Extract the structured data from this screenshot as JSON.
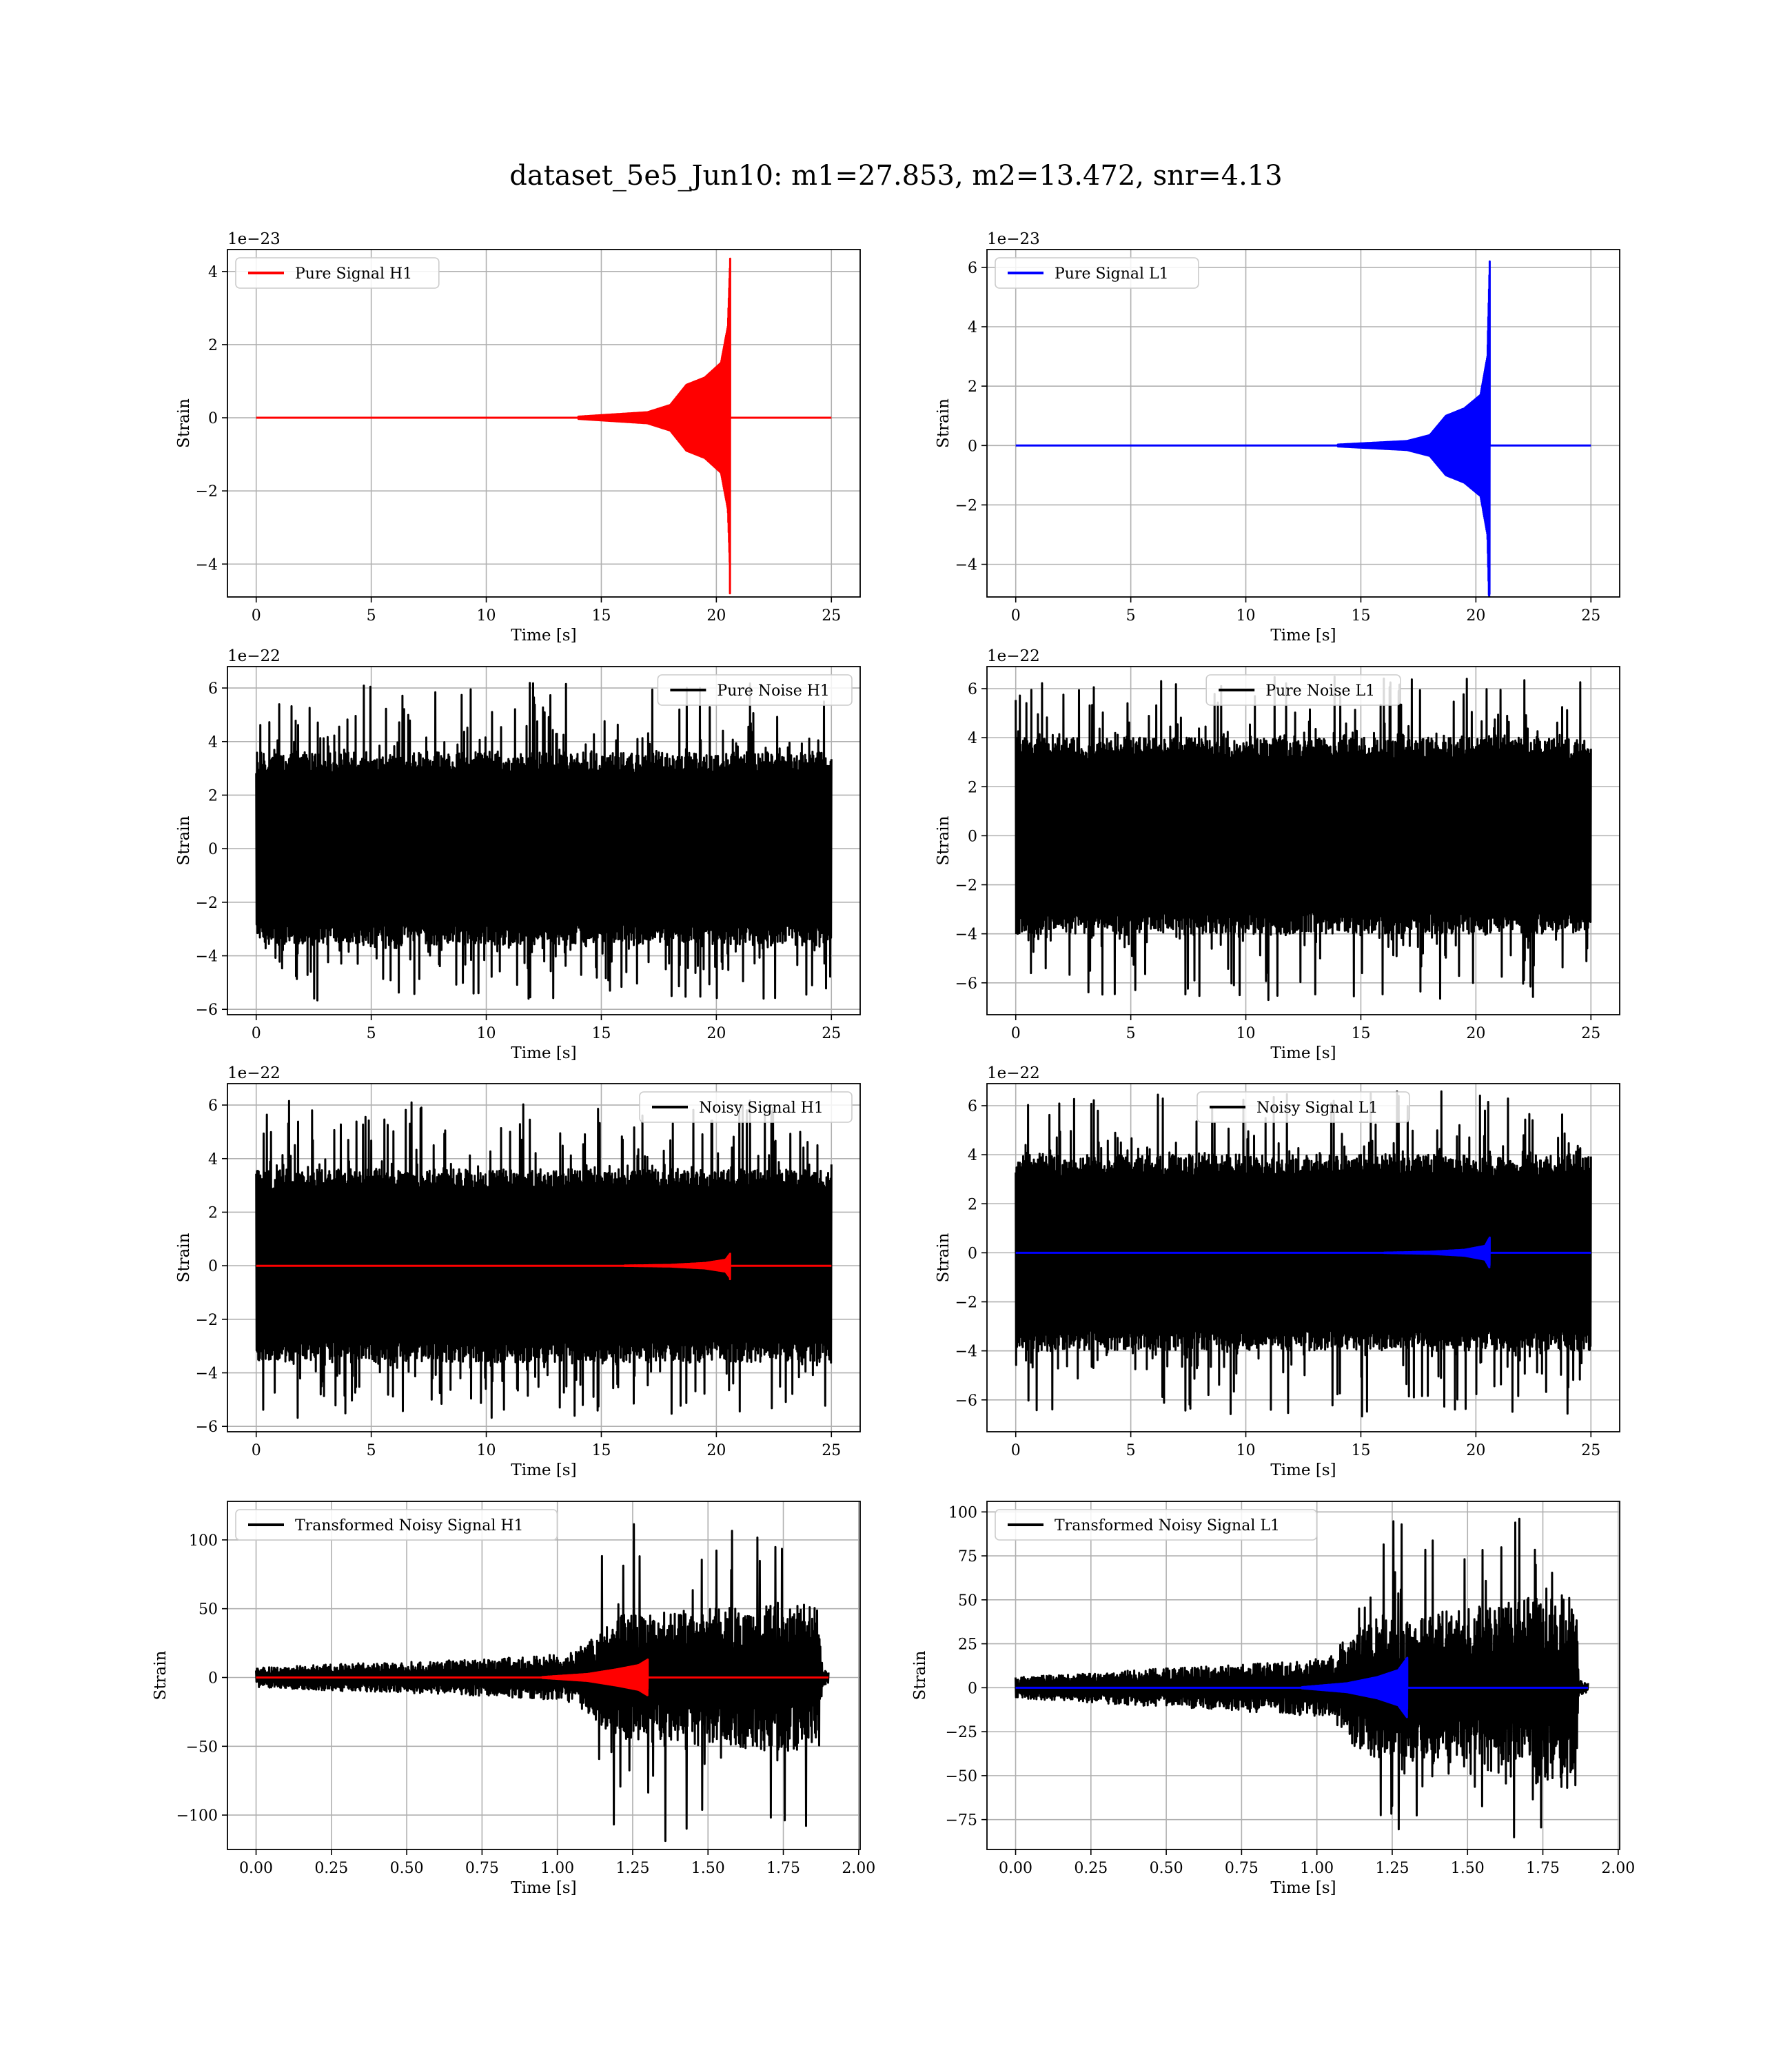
{
  "figure": {
    "suptitle": "dataset_5e5_Jun10: m1=27.853, m2=13.472, snr=4.13"
  },
  "chart_data": [
    {
      "type": "line",
      "id": "pure-signal-h1",
      "xlabel": "Time [s]",
      "ylabel": "Strain",
      "offset_text": "1e−23",
      "xlim": [
        -1.25,
        26.25
      ],
      "ylim": [
        -4.9,
        4.6
      ],
      "xticks": [
        0,
        5,
        10,
        15,
        20,
        25
      ],
      "xtick_labels": [
        "0",
        "5",
        "10",
        "15",
        "20",
        "25"
      ],
      "yticks": [
        -4,
        -2,
        0,
        2,
        4
      ],
      "ytick_labels": [
        "−4",
        "−2",
        "0",
        "2",
        "4"
      ],
      "grid": true,
      "legend_position": "upper left",
      "series": [
        {
          "name": "Pure Signal H1",
          "color": "#ff0000",
          "kind": "chirp",
          "x_range": [
            0,
            25
          ],
          "merger_x": 20.6,
          "onset_x": 14.0,
          "envelope_points": [
            [
              14,
              0.03
            ],
            [
              17,
              0.15
            ],
            [
              18,
              0.35
            ],
            [
              18.7,
              0.9
            ],
            [
              19.5,
              1.1
            ],
            [
              20.2,
              1.5
            ],
            [
              20.5,
              2.5
            ],
            [
              20.6,
              4.35
            ]
          ],
          "min_peak": -4.8
        }
      ]
    },
    {
      "type": "line",
      "id": "pure-signal-l1",
      "xlabel": "Time [s]",
      "ylabel": "Strain",
      "offset_text": "1e−23",
      "xlim": [
        -1.25,
        26.25
      ],
      "ylim": [
        -5.1,
        6.6
      ],
      "xticks": [
        0,
        5,
        10,
        15,
        20,
        25
      ],
      "xtick_labels": [
        "0",
        "5",
        "10",
        "15",
        "20",
        "25"
      ],
      "yticks": [
        -4,
        -2,
        0,
        2,
        4,
        6
      ],
      "ytick_labels": [
        "−4",
        "−2",
        "0",
        "2",
        "4",
        "6"
      ],
      "grid": true,
      "legend_position": "upper left",
      "series": [
        {
          "name": "Pure Signal L1",
          "color": "#0000ff",
          "kind": "chirp",
          "x_range": [
            0,
            25
          ],
          "merger_x": 20.6,
          "onset_x": 14.0,
          "envelope_points": [
            [
              14,
              0.03
            ],
            [
              17,
              0.15
            ],
            [
              18,
              0.35
            ],
            [
              18.7,
              1.0
            ],
            [
              19.5,
              1.25
            ],
            [
              20.2,
              1.7
            ],
            [
              20.5,
              3.0
            ],
            [
              20.6,
              6.2
            ]
          ],
          "min_peak": -5.0
        }
      ]
    },
    {
      "type": "line",
      "id": "pure-noise-h1",
      "xlabel": "Time [s]",
      "ylabel": "Strain",
      "offset_text": "1e−22",
      "xlim": [
        -1.25,
        26.25
      ],
      "ylim": [
        -6.2,
        6.8
      ],
      "xticks": [
        0,
        5,
        10,
        15,
        20,
        25
      ],
      "xtick_labels": [
        "0",
        "5",
        "10",
        "15",
        "20",
        "25"
      ],
      "yticks": [
        -6,
        -4,
        -2,
        0,
        2,
        4,
        6
      ],
      "ytick_labels": [
        "−6",
        "−4",
        "−2",
        "0",
        "2",
        "4",
        "6"
      ],
      "grid": true,
      "legend_position": "upper right",
      "series": [
        {
          "name": "Pure Noise H1",
          "color": "#000000",
          "kind": "noise",
          "x_range": [
            0,
            25
          ],
          "band": 3.6,
          "max_peak": 6.2,
          "min_peak": -5.7
        }
      ]
    },
    {
      "type": "line",
      "id": "pure-noise-l1",
      "xlabel": "Time [s]",
      "ylabel": "Strain",
      "offset_text": "1e−22",
      "xlim": [
        -1.25,
        26.25
      ],
      "ylim": [
        -7.3,
        6.9
      ],
      "xticks": [
        0,
        5,
        10,
        15,
        20,
        25
      ],
      "xtick_labels": [
        "0",
        "5",
        "10",
        "15",
        "20",
        "25"
      ],
      "yticks": [
        -6,
        -4,
        -2,
        0,
        2,
        4,
        6
      ],
      "ytick_labels": [
        "−6",
        "−4",
        "−2",
        "0",
        "2",
        "4",
        "6"
      ],
      "grid": true,
      "legend_position": "upper center",
      "series": [
        {
          "name": "Pure Noise L1",
          "color": "#000000",
          "kind": "noise",
          "x_range": [
            0,
            25
          ],
          "band": 4.0,
          "max_peak": 6.5,
          "min_peak": -6.7
        }
      ]
    },
    {
      "type": "line",
      "id": "noisy-signal-h1",
      "xlabel": "Time [s]",
      "ylabel": "Strain",
      "offset_text": "1e−22",
      "xlim": [
        -1.25,
        26.25
      ],
      "ylim": [
        -6.2,
        6.8
      ],
      "xticks": [
        0,
        5,
        10,
        15,
        20,
        25
      ],
      "xtick_labels": [
        "0",
        "5",
        "10",
        "15",
        "20",
        "25"
      ],
      "yticks": [
        -6,
        -4,
        -2,
        0,
        2,
        4,
        6
      ],
      "ytick_labels": [
        "−6",
        "−4",
        "−2",
        "0",
        "2",
        "4",
        "6"
      ],
      "grid": true,
      "legend_position": "upper right",
      "series": [
        {
          "name": "Noisy Signal H1",
          "color": "#000000",
          "kind": "noise",
          "x_range": [
            0,
            25
          ],
          "band": 3.6,
          "max_peak": 6.2,
          "min_peak": -5.7
        },
        {
          "name": "",
          "color": "#ff0000",
          "kind": "chirp",
          "x_range": [
            0,
            25
          ],
          "merger_x": 20.6,
          "onset_x": 16.0,
          "envelope_points": [
            [
              16,
              0.005
            ],
            [
              18,
              0.03
            ],
            [
              19.5,
              0.1
            ],
            [
              20.4,
              0.22
            ],
            [
              20.6,
              0.45
            ]
          ],
          "min_peak": -0.5
        }
      ]
    },
    {
      "type": "line",
      "id": "noisy-signal-l1",
      "xlabel": "Time [s]",
      "ylabel": "Strain",
      "offset_text": "1e−22",
      "xlim": [
        -1.25,
        26.25
      ],
      "ylim": [
        -7.3,
        6.9
      ],
      "xticks": [
        0,
        5,
        10,
        15,
        20,
        25
      ],
      "xtick_labels": [
        "0",
        "5",
        "10",
        "15",
        "20",
        "25"
      ],
      "yticks": [
        -6,
        -4,
        -2,
        0,
        2,
        4,
        6
      ],
      "ytick_labels": [
        "−6",
        "−4",
        "−2",
        "0",
        "2",
        "4",
        "6"
      ],
      "grid": true,
      "legend_position": "upper center",
      "series": [
        {
          "name": "Noisy Signal L1",
          "color": "#000000",
          "kind": "noise",
          "x_range": [
            0,
            25
          ],
          "band": 4.0,
          "max_peak": 6.6,
          "min_peak": -6.7
        },
        {
          "name": "",
          "color": "#0000ff",
          "kind": "chirp",
          "x_range": [
            0,
            25
          ],
          "merger_x": 20.6,
          "onset_x": 16.0,
          "envelope_points": [
            [
              16,
              0.005
            ],
            [
              18,
              0.04
            ],
            [
              19.5,
              0.12
            ],
            [
              20.4,
              0.28
            ],
            [
              20.6,
              0.62
            ]
          ],
          "min_peak": -0.5
        }
      ]
    },
    {
      "type": "line",
      "id": "transformed-noisy-signal-h1",
      "xlabel": "Time [s]",
      "ylabel": "Strain",
      "offset_text": "",
      "xlim": [
        -0.095,
        2.005
      ],
      "ylim": [
        -125,
        128
      ],
      "xticks": [
        0.0,
        0.25,
        0.5,
        0.75,
        1.0,
        1.25,
        1.5,
        1.75,
        2.0
      ],
      "xtick_labels": [
        "0.00",
        "0.25",
        "0.50",
        "0.75",
        "1.00",
        "1.25",
        "1.50",
        "1.75",
        "2.00"
      ],
      "yticks": [
        -100,
        -50,
        0,
        50,
        100
      ],
      "ytick_labels": [
        "−100",
        "−50",
        "0",
        "50",
        "100"
      ],
      "grid": true,
      "legend_position": "upper left",
      "series": [
        {
          "name": "Transformed Noisy Signal H1",
          "color": "#000000",
          "kind": "whitened",
          "x_range": [
            0,
            1.9
          ],
          "band_points": [
            [
              0,
              7
            ],
            [
              0.3,
              10
            ],
            [
              0.6,
              12
            ],
            [
              0.9,
              15
            ],
            [
              1.05,
              18
            ],
            [
              1.12,
              30
            ],
            [
              1.2,
              45
            ],
            [
              1.5,
              50
            ],
            [
              1.8,
              55
            ],
            [
              1.87,
              50
            ],
            [
              1.88,
              6
            ],
            [
              1.9,
              5
            ]
          ],
          "max_peak": 120,
          "min_peak": -122
        },
        {
          "name": "",
          "color": "#ff0000",
          "kind": "chirp",
          "x_range": [
            0,
            1.9
          ],
          "merger_x": 1.3,
          "onset_x": 0.95,
          "envelope_points": [
            [
              0.95,
              0.3
            ],
            [
              1.1,
              2.5
            ],
            [
              1.2,
              6
            ],
            [
              1.27,
              9
            ],
            [
              1.3,
              13
            ]
          ],
          "min_peak": -8
        }
      ]
    },
    {
      "type": "line",
      "id": "transformed-noisy-signal-l1",
      "xlabel": "Time [s]",
      "ylabel": "Strain",
      "offset_text": "",
      "xlim": [
        -0.095,
        2.005
      ],
      "ylim": [
        -92,
        106
      ],
      "xticks": [
        0.0,
        0.25,
        0.5,
        0.75,
        1.0,
        1.25,
        1.5,
        1.75,
        2.0
      ],
      "xtick_labels": [
        "0.00",
        "0.25",
        "0.50",
        "0.75",
        "1.00",
        "1.25",
        "1.50",
        "1.75",
        "2.00"
      ],
      "yticks": [
        -75,
        -50,
        -25,
        0,
        25,
        50,
        75,
        100
      ],
      "ytick_labels": [
        "−75",
        "−50",
        "−25",
        "0",
        "25",
        "50",
        "75",
        "100"
      ],
      "grid": true,
      "legend_position": "upper left",
      "series": [
        {
          "name": "Transformed Noisy Signal L1",
          "color": "#000000",
          "kind": "whitened",
          "x_range": [
            0,
            1.9
          ],
          "band_points": [
            [
              0,
              6
            ],
            [
              0.3,
              9
            ],
            [
              0.6,
              12
            ],
            [
              0.9,
              15
            ],
            [
              1.05,
              18
            ],
            [
              1.12,
              35
            ],
            [
              1.2,
              40
            ],
            [
              1.5,
              45
            ],
            [
              1.8,
              55
            ],
            [
              1.86,
              50
            ],
            [
              1.87,
              4
            ],
            [
              1.9,
              3
            ]
          ],
          "max_peak": 100,
          "min_peak": -90
        },
        {
          "name": "",
          "color": "#0000ff",
          "kind": "chirp",
          "x_range": [
            0,
            1.9
          ],
          "merger_x": 1.3,
          "onset_x": 0.95,
          "envelope_points": [
            [
              0.95,
              0.3
            ],
            [
              1.1,
              2.5
            ],
            [
              1.2,
              6
            ],
            [
              1.27,
              10
            ],
            [
              1.3,
              17
            ]
          ],
          "min_peak": -12
        }
      ]
    }
  ]
}
